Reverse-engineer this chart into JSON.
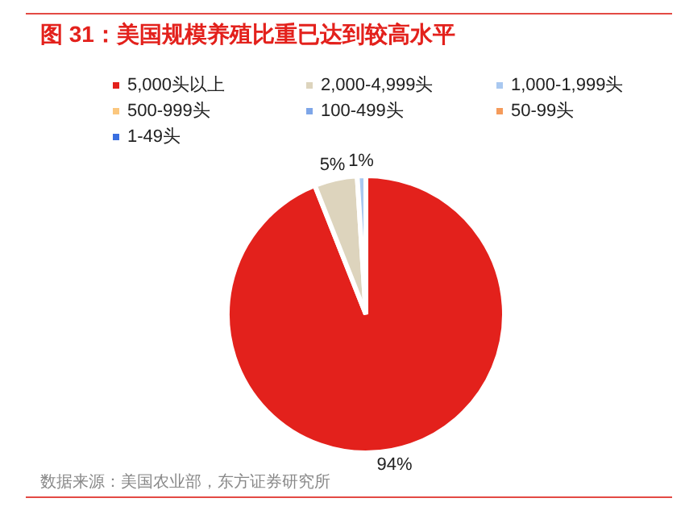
{
  "chart_data": {
    "type": "pie",
    "title": "图 31：美国规模养殖比重已达到较高水平",
    "categories": [
      "5,000头以上",
      "2,000-4,999头",
      "1,000-1,999头",
      "500-999头",
      "100-499头",
      "50-99头",
      "1-49头"
    ],
    "values": [
      94,
      5,
      1,
      0,
      0,
      0,
      0
    ],
    "colors": [
      "#e3211c",
      "#ddd4bd",
      "#a9c8f0",
      "#fbc77e",
      "#7ea6e8",
      "#f59b5b",
      "#3a6fe0"
    ],
    "value_labels": [
      "94%",
      "5%",
      "1%",
      null,
      null,
      null,
      null
    ],
    "legend": "top",
    "annotations": [
      "数据来源：美国农业部，东方证券研究所"
    ]
  }
}
